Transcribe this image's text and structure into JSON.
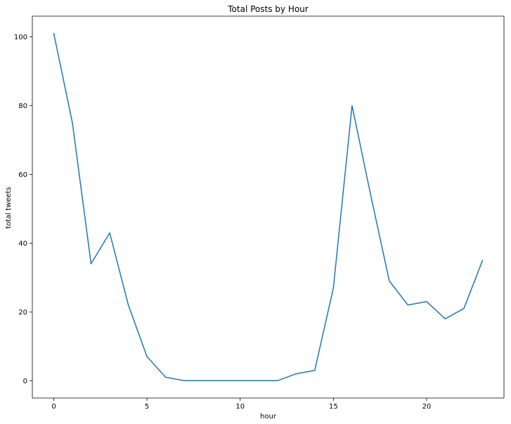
{
  "chart_data": {
    "type": "line",
    "title": "Total Posts by Hour",
    "xlabel": "hour",
    "ylabel": "total tweets",
    "xlim": [
      -1.15,
      24.15
    ],
    "ylim": [
      -5.05,
      106.05
    ],
    "xticks": [
      0,
      5,
      10,
      15,
      20
    ],
    "yticks": [
      0,
      20,
      40,
      60,
      80,
      100
    ],
    "grid": false,
    "series": [
      {
        "color": "#1f77b4",
        "x": [
          0,
          1,
          2,
          3,
          4,
          5,
          6,
          7,
          8,
          9,
          10,
          11,
          12,
          13,
          14,
          15,
          16,
          17,
          18,
          19,
          20,
          21,
          22,
          23
        ],
        "y": [
          101,
          75,
          34,
          43,
          22,
          7,
          1,
          0,
          0,
          0,
          0,
          0,
          0,
          2,
          3,
          27,
          80,
          54,
          29,
          22,
          23,
          18,
          21,
          35
        ]
      }
    ]
  }
}
